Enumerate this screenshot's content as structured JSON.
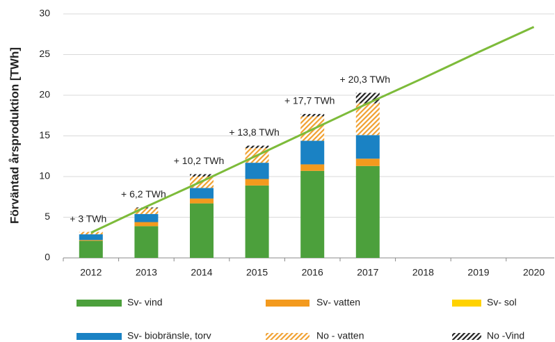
{
  "chart_data": {
    "type": "stacked_bar_line",
    "y_label": "Förväntad årsproduktion [TWh]",
    "categories": [
      "2012",
      "2013",
      "2014",
      "2015",
      "2016",
      "2017",
      "2018",
      "2019",
      "2020"
    ],
    "series": [
      {
        "name": "Sv- vind",
        "color": "#4ca03c",
        "values": [
          2.1,
          3.9,
          6.7,
          8.9,
          10.7,
          11.3,
          null,
          null,
          null
        ]
      },
      {
        "name": "Sv- vatten",
        "color": "#f39a1e",
        "values": [
          0.1,
          0.5,
          0.6,
          0.8,
          0.8,
          0.9,
          null,
          null,
          null
        ]
      },
      {
        "name": "Sv- sol",
        "color": "#ffd200",
        "values": [
          0,
          0,
          0,
          0,
          0,
          0,
          null,
          null,
          null
        ]
      },
      {
        "name": "Sv- biobränsle, torv",
        "color": "#1a82c4",
        "values": [
          0.7,
          1.0,
          1.3,
          2.0,
          2.9,
          2.9,
          null,
          null,
          null
        ]
      },
      {
        "name": "No - vatten",
        "color": "#f0a030",
        "pattern": "hatch",
        "values": [
          0.3,
          0.7,
          1.4,
          1.8,
          3.0,
          3.9,
          null,
          null,
          null
        ]
      },
      {
        "name": "No -Vind",
        "color": "#222222",
        "pattern": "hatch",
        "values": [
          0,
          0.1,
          0.3,
          0.3,
          0.3,
          1.3,
          null,
          null,
          null
        ]
      }
    ],
    "line": {
      "color": "#7dbb3a",
      "values": [
        3.1,
        6.3,
        9.4,
        12.6,
        15.8,
        19.0,
        22.1,
        25.3,
        28.4
      ]
    },
    "annotations": [
      "+ 3 TWh",
      "+ 6,2 TWh",
      "+ 10,2 TWh",
      "+ 13,8 TWh",
      "+ 17,7 TWh",
      "+ 20,3 TWh",
      null,
      null,
      null
    ],
    "ylim": [
      0,
      30
    ],
    "yticks": [
      0,
      5,
      10,
      15,
      20,
      25,
      30
    ],
    "grid": true
  }
}
